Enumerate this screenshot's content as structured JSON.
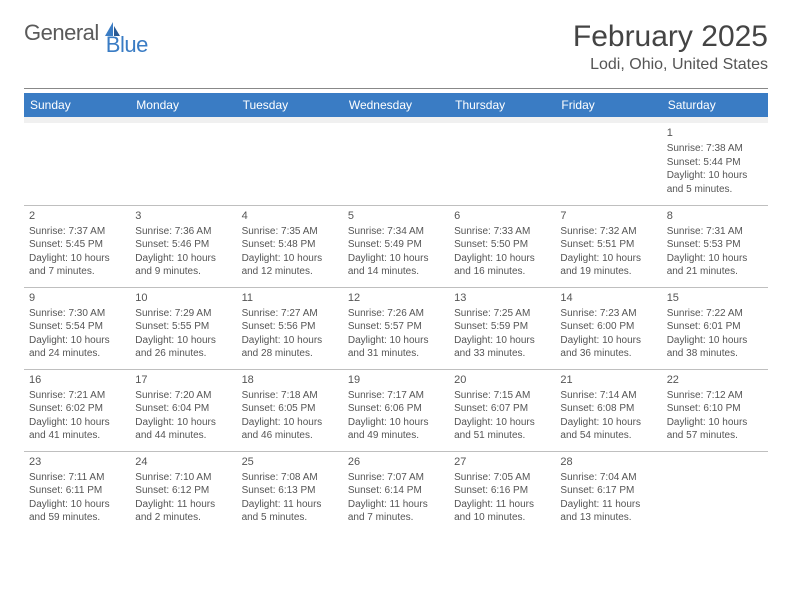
{
  "logo": {
    "word1": "General",
    "word2": "Blue"
  },
  "title": "February 2025",
  "location": "Lodi, Ohio, United States",
  "colors": {
    "header_bg": "#3a7cc4",
    "header_text": "#ffffff",
    "divider": "#888888",
    "cell_border": "#bfbfbf",
    "blank_row_bg": "#f0f0f0",
    "body_text": "#444444",
    "logo_gray": "#5a5a5a",
    "logo_blue": "#3a7cc4"
  },
  "typography": {
    "title_fontsize": 30,
    "location_fontsize": 16,
    "dayheader_fontsize": 12,
    "daynum_fontsize": 11,
    "info_fontsize": 10
  },
  "day_names": [
    "Sunday",
    "Monday",
    "Tuesday",
    "Wednesday",
    "Thursday",
    "Friday",
    "Saturday"
  ],
  "weeks": [
    [
      null,
      null,
      null,
      null,
      null,
      null,
      {
        "n": 1,
        "sr": "7:38 AM",
        "ss": "5:44 PM",
        "dl": "10 hours and 5 minutes."
      }
    ],
    [
      {
        "n": 2,
        "sr": "7:37 AM",
        "ss": "5:45 PM",
        "dl": "10 hours and 7 minutes."
      },
      {
        "n": 3,
        "sr": "7:36 AM",
        "ss": "5:46 PM",
        "dl": "10 hours and 9 minutes."
      },
      {
        "n": 4,
        "sr": "7:35 AM",
        "ss": "5:48 PM",
        "dl": "10 hours and 12 minutes."
      },
      {
        "n": 5,
        "sr": "7:34 AM",
        "ss": "5:49 PM",
        "dl": "10 hours and 14 minutes."
      },
      {
        "n": 6,
        "sr": "7:33 AM",
        "ss": "5:50 PM",
        "dl": "10 hours and 16 minutes."
      },
      {
        "n": 7,
        "sr": "7:32 AM",
        "ss": "5:51 PM",
        "dl": "10 hours and 19 minutes."
      },
      {
        "n": 8,
        "sr": "7:31 AM",
        "ss": "5:53 PM",
        "dl": "10 hours and 21 minutes."
      }
    ],
    [
      {
        "n": 9,
        "sr": "7:30 AM",
        "ss": "5:54 PM",
        "dl": "10 hours and 24 minutes."
      },
      {
        "n": 10,
        "sr": "7:29 AM",
        "ss": "5:55 PM",
        "dl": "10 hours and 26 minutes."
      },
      {
        "n": 11,
        "sr": "7:27 AM",
        "ss": "5:56 PM",
        "dl": "10 hours and 28 minutes."
      },
      {
        "n": 12,
        "sr": "7:26 AM",
        "ss": "5:57 PM",
        "dl": "10 hours and 31 minutes."
      },
      {
        "n": 13,
        "sr": "7:25 AM",
        "ss": "5:59 PM",
        "dl": "10 hours and 33 minutes."
      },
      {
        "n": 14,
        "sr": "7:23 AM",
        "ss": "6:00 PM",
        "dl": "10 hours and 36 minutes."
      },
      {
        "n": 15,
        "sr": "7:22 AM",
        "ss": "6:01 PM",
        "dl": "10 hours and 38 minutes."
      }
    ],
    [
      {
        "n": 16,
        "sr": "7:21 AM",
        "ss": "6:02 PM",
        "dl": "10 hours and 41 minutes."
      },
      {
        "n": 17,
        "sr": "7:20 AM",
        "ss": "6:04 PM",
        "dl": "10 hours and 44 minutes."
      },
      {
        "n": 18,
        "sr": "7:18 AM",
        "ss": "6:05 PM",
        "dl": "10 hours and 46 minutes."
      },
      {
        "n": 19,
        "sr": "7:17 AM",
        "ss": "6:06 PM",
        "dl": "10 hours and 49 minutes."
      },
      {
        "n": 20,
        "sr": "7:15 AM",
        "ss": "6:07 PM",
        "dl": "10 hours and 51 minutes."
      },
      {
        "n": 21,
        "sr": "7:14 AM",
        "ss": "6:08 PM",
        "dl": "10 hours and 54 minutes."
      },
      {
        "n": 22,
        "sr": "7:12 AM",
        "ss": "6:10 PM",
        "dl": "10 hours and 57 minutes."
      }
    ],
    [
      {
        "n": 23,
        "sr": "7:11 AM",
        "ss": "6:11 PM",
        "dl": "10 hours and 59 minutes."
      },
      {
        "n": 24,
        "sr": "7:10 AM",
        "ss": "6:12 PM",
        "dl": "11 hours and 2 minutes."
      },
      {
        "n": 25,
        "sr": "7:08 AM",
        "ss": "6:13 PM",
        "dl": "11 hours and 5 minutes."
      },
      {
        "n": 26,
        "sr": "7:07 AM",
        "ss": "6:14 PM",
        "dl": "11 hours and 7 minutes."
      },
      {
        "n": 27,
        "sr": "7:05 AM",
        "ss": "6:16 PM",
        "dl": "11 hours and 10 minutes."
      },
      {
        "n": 28,
        "sr": "7:04 AM",
        "ss": "6:17 PM",
        "dl": "11 hours and 13 minutes."
      },
      null
    ]
  ],
  "labels": {
    "sunrise_prefix": "Sunrise: ",
    "sunset_prefix": "Sunset: ",
    "daylight_prefix": "Daylight: "
  }
}
